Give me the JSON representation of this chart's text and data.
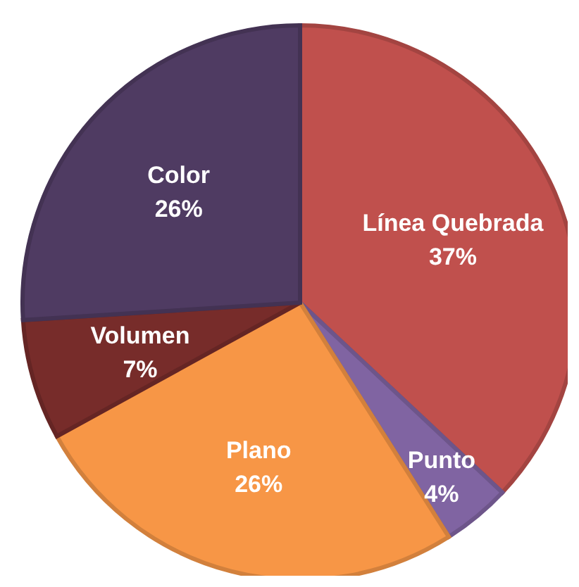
{
  "chart_data": {
    "type": "pie",
    "categories": [
      "Línea Quebrada",
      "Punto",
      "Plano",
      "Volumen",
      "Color"
    ],
    "values": [
      37,
      4,
      26,
      7,
      26
    ],
    "value_labels": [
      "37%",
      "4%",
      "26%",
      "7%",
      "26%"
    ],
    "colors": [
      "#c0504d",
      "#8064a2",
      "#f79646",
      "#772c2a",
      "#4f3b62"
    ]
  }
}
